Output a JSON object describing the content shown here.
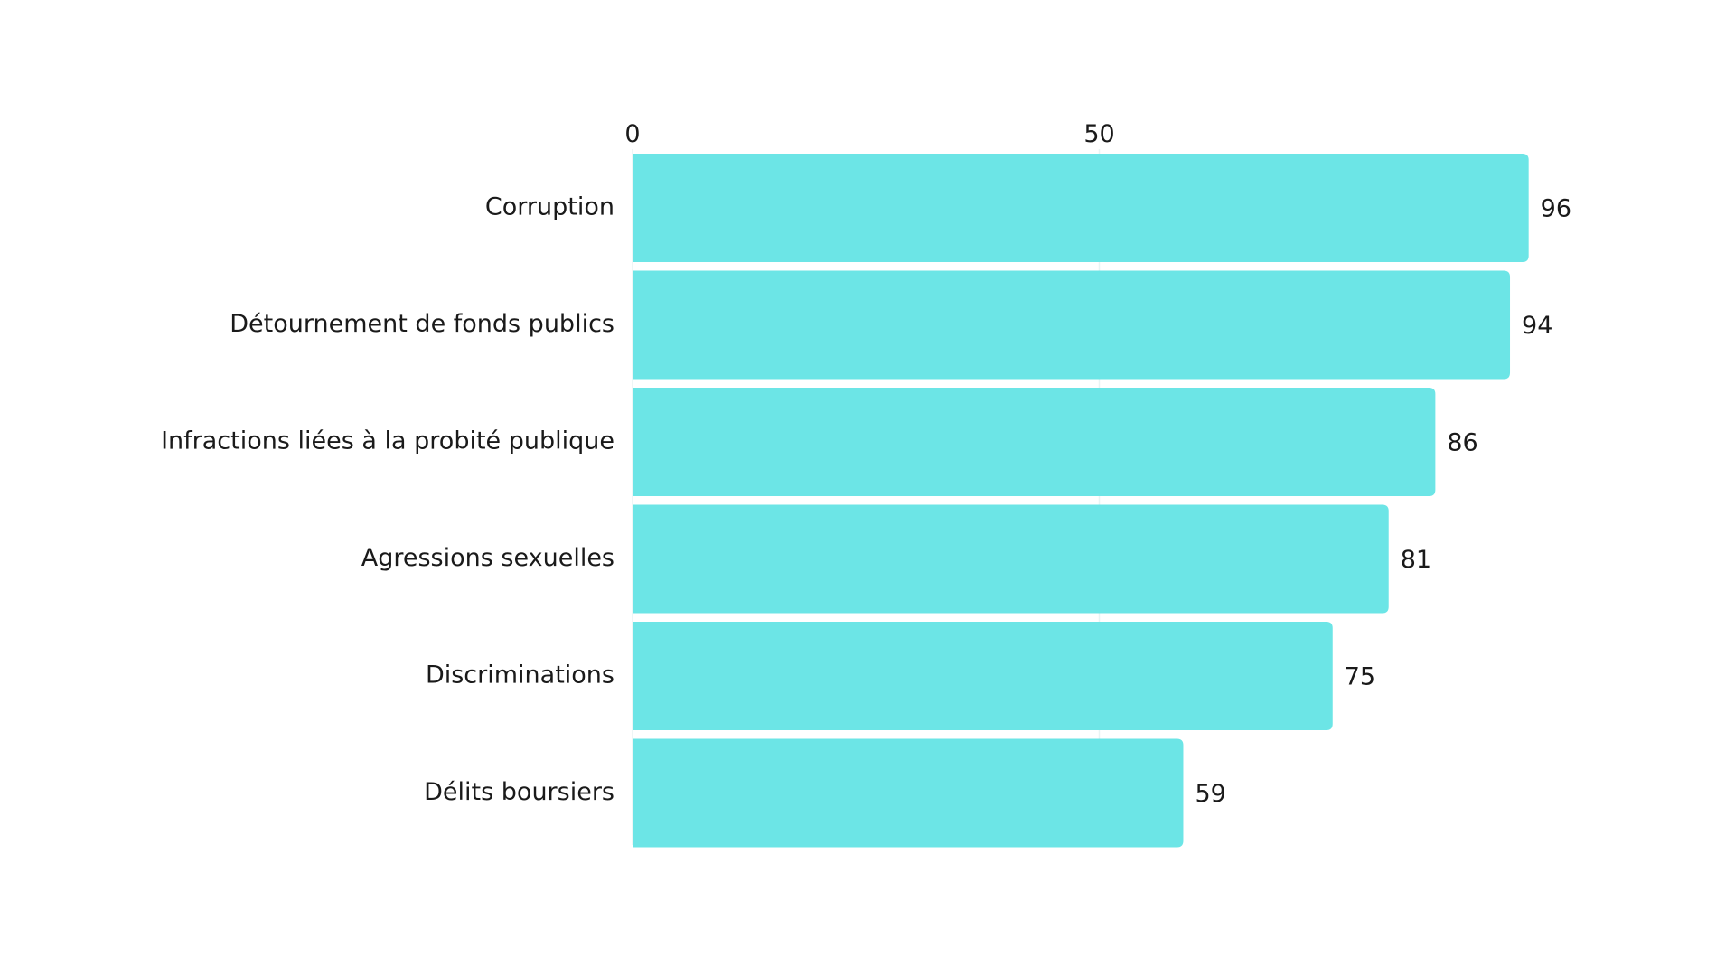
{
  "chart_data": {
    "type": "bar",
    "orientation": "horizontal",
    "categories": [
      "Corruption",
      "Détournement de fonds publics",
      "Infractions liées à la probité publique",
      "Agressions sexuelles",
      "Discriminations",
      "Délits boursiers"
    ],
    "values": [
      96,
      94,
      86,
      81,
      75,
      59
    ],
    "value_labels": [
      "96",
      "94",
      "86",
      "81",
      "75",
      "59"
    ],
    "xticks": [
      0,
      50
    ],
    "xtick_labels": [
      "0",
      "50"
    ],
    "xlim": [
      0,
      100
    ],
    "xaxis_position": "top",
    "grid": true,
    "legend": "none",
    "bar_color": "#6ce5e6",
    "grid_color": "#e9f4f4",
    "text_color": "#1a1a1a"
  }
}
